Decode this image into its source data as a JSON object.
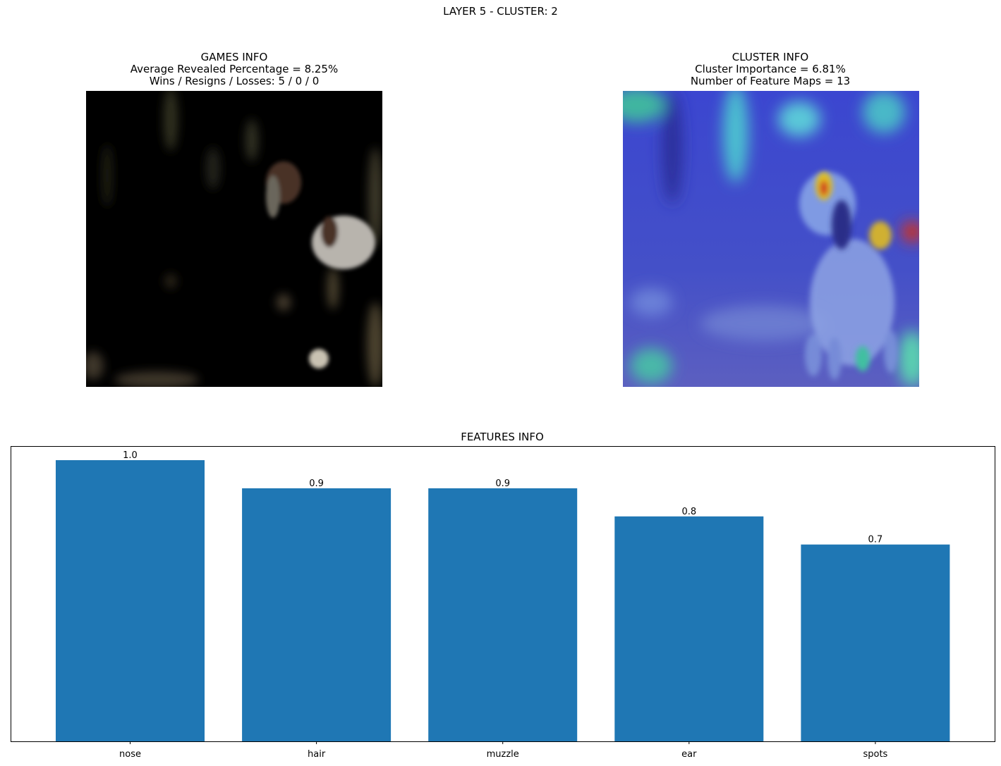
{
  "suptitle": "LAYER 5 - CLUSTER: 2",
  "games_info": {
    "title": "GAMES INFO",
    "line1": "Average Revealed Percentage = 8.25%",
    "line2": "Wins / Resigns / Losses: 5 / 0 / 0"
  },
  "cluster_info": {
    "title": "CLUSTER INFO",
    "line1": "Cluster Importance = 6.81%",
    "line2": "Number of Feature Maps = 13"
  },
  "chart_data": {
    "type": "bar",
    "title": "FEATURES INFO",
    "categories": [
      "nose",
      "hair",
      "muzzle",
      "ear",
      "spots"
    ],
    "values": [
      1.0,
      0.9,
      0.9,
      0.8,
      0.7
    ],
    "value_labels": [
      "1.0",
      "0.9",
      "0.9",
      "0.8",
      "0.7"
    ],
    "xlabel": "",
    "ylabel": "",
    "ylim": [
      0,
      1.0
    ],
    "grid": false,
    "bar_color": "#1f77b4"
  }
}
